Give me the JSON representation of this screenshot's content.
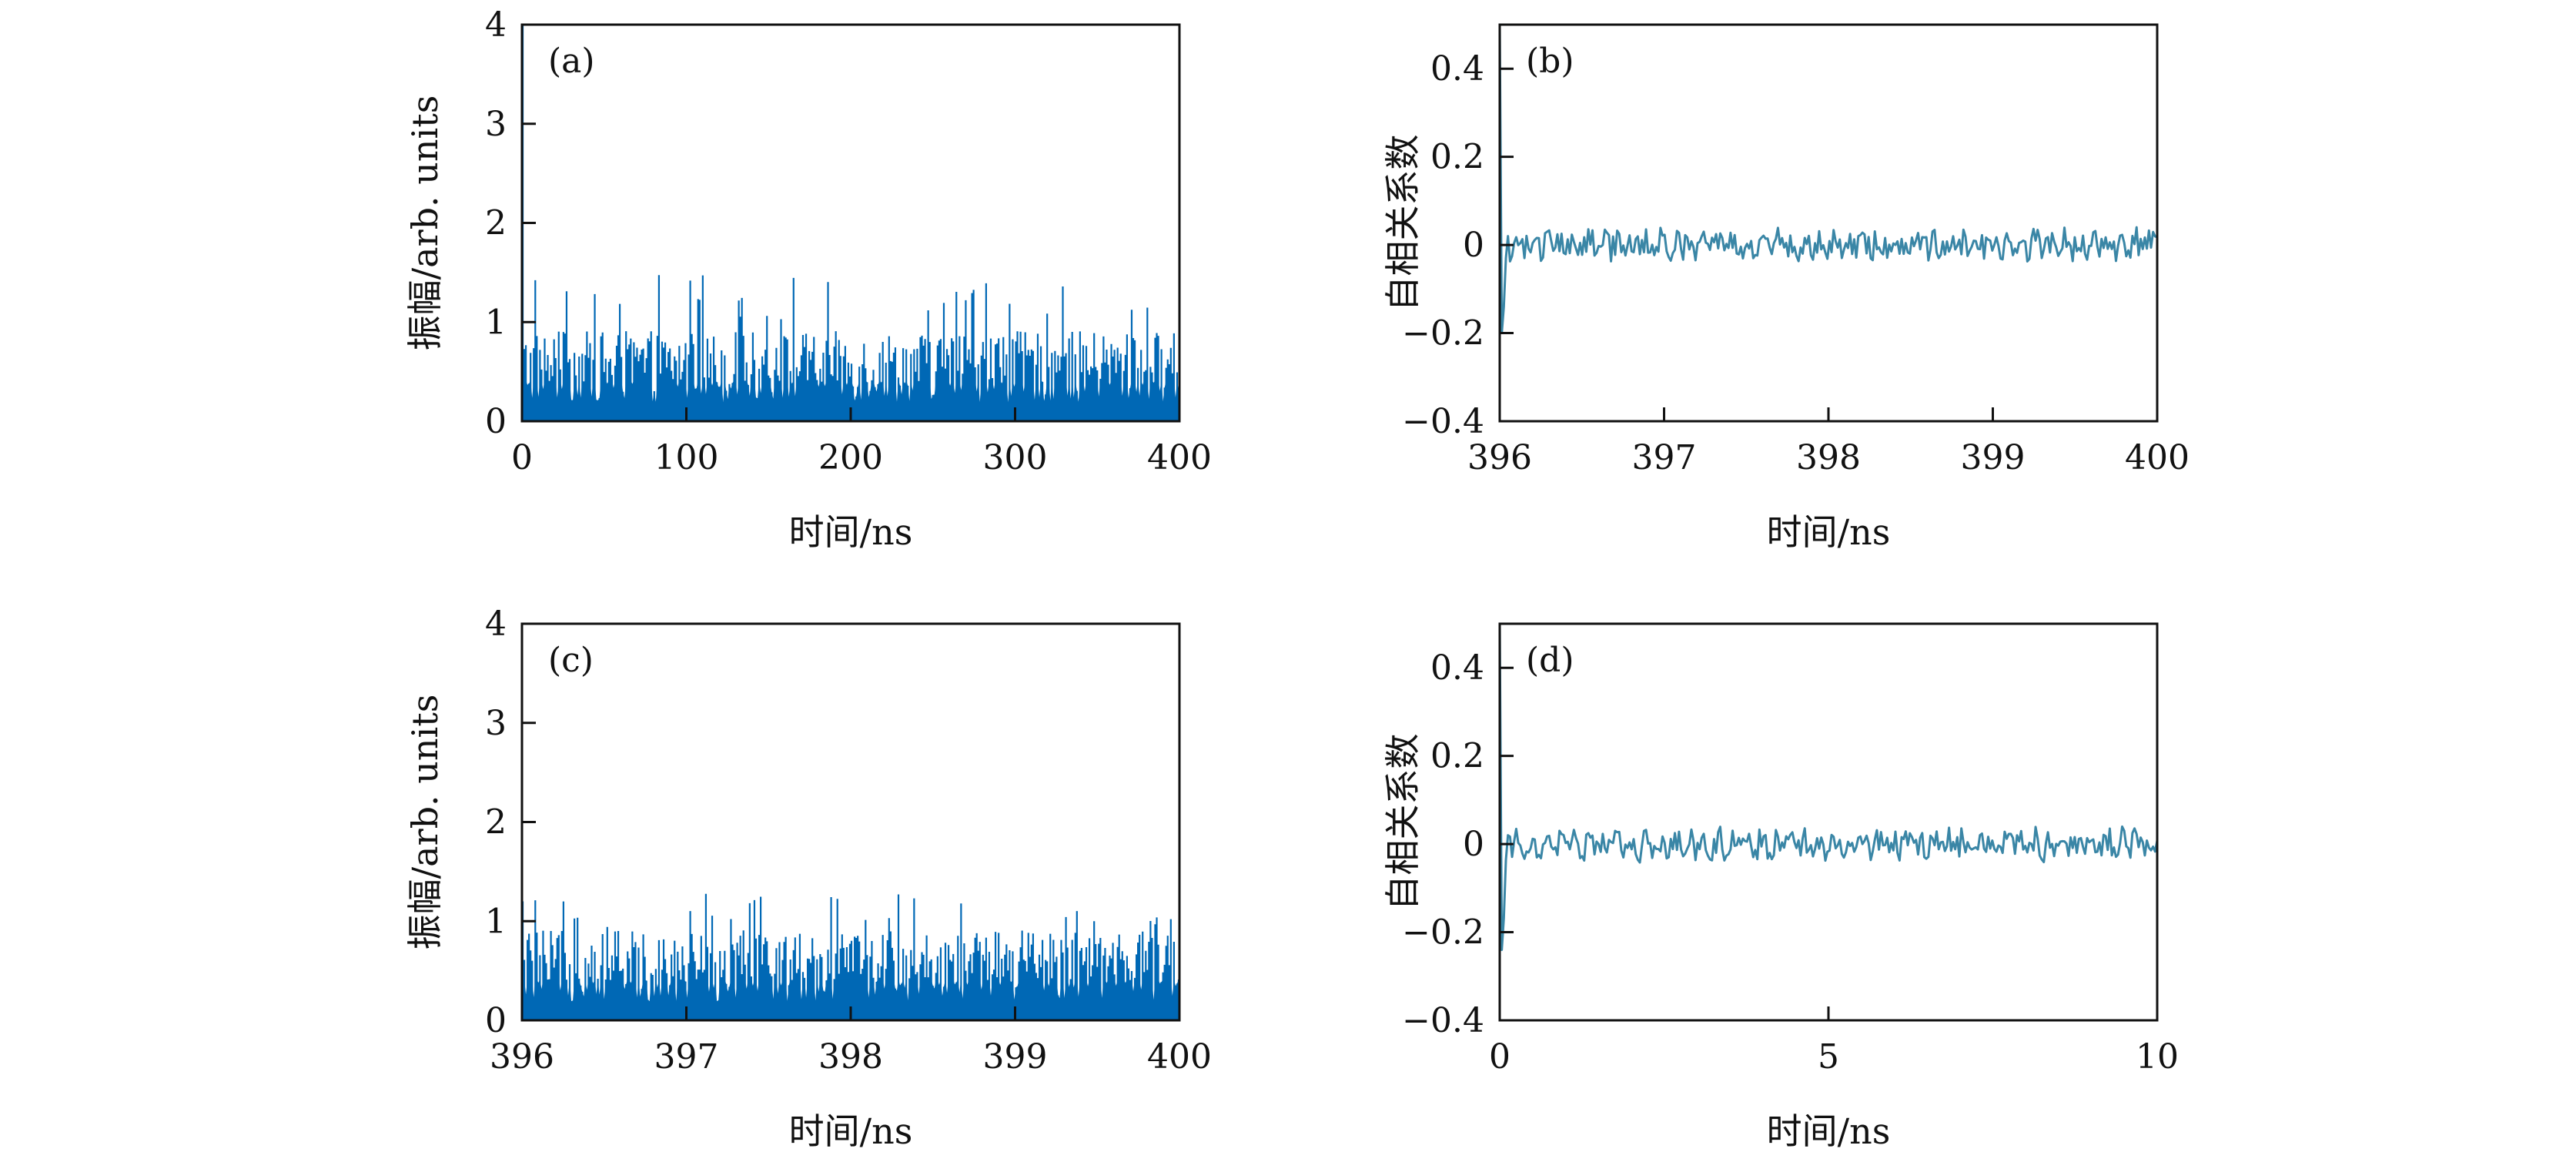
{
  "chart_data": [
    {
      "id": "a",
      "type": "bar",
      "panel_label": "(a)",
      "xlabel": "时间/ns",
      "ylabel": "振幅/arb. units",
      "xlim": [
        0,
        400
      ],
      "ylim": [
        0,
        4
      ],
      "xticks": [
        "0",
        "100",
        "200",
        "300",
        "400"
      ],
      "yticks": [
        "0",
        "1",
        "2",
        "3",
        "4"
      ],
      "color": "#0068b5",
      "series": {
        "type": "amplitude_noise",
        "x_start": 0,
        "x_end": 400,
        "n": 420,
        "initial_peak": 4.0,
        "typical_mean": 0.55,
        "max_value": 1.5
      }
    },
    {
      "id": "b",
      "type": "line",
      "panel_label": "(b)",
      "xlabel": "时间/ns",
      "ylabel": "自相关系数",
      "xlim": [
        396,
        400
      ],
      "ylim": [
        -0.4,
        0.5
      ],
      "xticks": [
        "396",
        "397",
        "398",
        "399",
        "400"
      ],
      "yticks": [
        "−0.4",
        "−0.2",
        "0",
        "0.2",
        "0.4"
      ],
      "ytick_values": [
        -0.4,
        -0.2,
        0,
        0.2,
        0.4
      ],
      "color": "#3a86a6",
      "series": {
        "type": "autocorrelation",
        "x_start": 396,
        "x_end": 400,
        "n": 320,
        "peak": 1.0,
        "min_value": -0.2,
        "noise_amplitude": 0.03
      }
    },
    {
      "id": "c",
      "type": "bar",
      "panel_label": "(c)",
      "xlabel": "时间/ns",
      "ylabel": "振幅/arb. units",
      "xlim": [
        396,
        400
      ],
      "ylim": [
        0,
        4
      ],
      "xticks": [
        "396",
        "397",
        "398",
        "399",
        "400"
      ],
      "yticks": [
        "0",
        "1",
        "2",
        "3",
        "4"
      ],
      "color": "#0068b5",
      "series": {
        "type": "amplitude_noise",
        "x_start": 396,
        "x_end": 400,
        "n": 420,
        "initial_peak": 1.2,
        "typical_mean": 0.55,
        "max_value": 1.3
      }
    },
    {
      "id": "d",
      "type": "line",
      "panel_label": "(d)",
      "xlabel": "时间/ns",
      "ylabel": "自相关系数",
      "xlim": [
        0,
        10
      ],
      "ylim": [
        -0.4,
        0.5
      ],
      "xticks": [
        "0",
        "5",
        "10"
      ],
      "yticks": [
        "−0.4",
        "−0.2",
        "0",
        "0.2",
        "0.4"
      ],
      "ytick_values": [
        -0.4,
        -0.2,
        0,
        0.2,
        0.4
      ],
      "color": "#3a86a6",
      "series": {
        "type": "autocorrelation",
        "x_start": 0,
        "x_end": 10,
        "n": 320,
        "peak": 1.0,
        "min_value": -0.24,
        "noise_amplitude": 0.03
      }
    }
  ]
}
